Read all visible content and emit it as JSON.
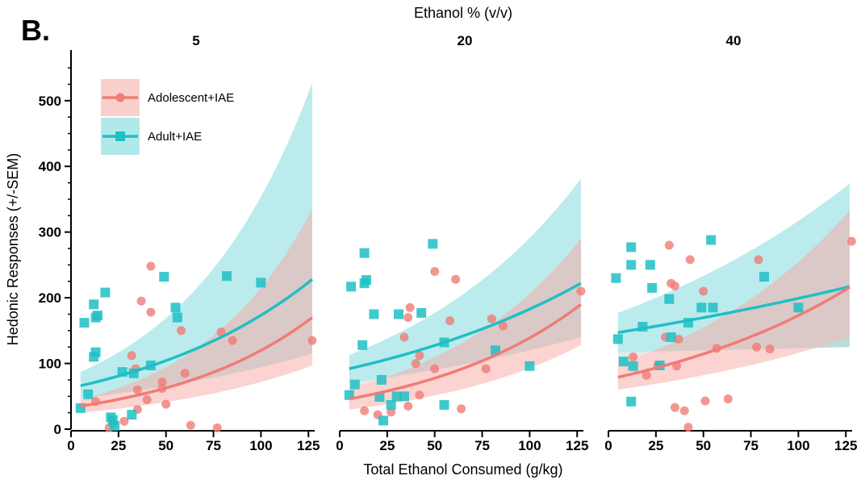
{
  "figure": {
    "panel_letter": "B.",
    "top_title": "Ethanol % (v/v)",
    "xlabel": "Total Ethanol Consumed (g/kg)",
    "ylabel": "Hedonic Responses (+/-SEM)"
  },
  "colors": {
    "adolescent": "#F07C76",
    "adolescent_band": "#F9C4C1",
    "adult": "#1FBFC4",
    "adult_band": "#9EE3E6",
    "overlap_band": "#BFC0BD"
  },
  "legend": {
    "position": "top-left",
    "items": [
      {
        "label": "Adolescent+IAE",
        "series": "adolescent",
        "marker": "circle"
      },
      {
        "label": "Adult+IAE",
        "series": "adult",
        "marker": "square"
      }
    ]
  },
  "chart_data": {
    "type": "scatter",
    "xlim": [
      0,
      130
    ],
    "ylim": [
      0,
      560
    ],
    "x_ticks": [
      0,
      25,
      50,
      75,
      100,
      125
    ],
    "y_ticks": [
      0,
      100,
      200,
      300,
      400,
      500
    ],
    "fit": "exponential trend with confidence band",
    "facets": [
      {
        "label": "5",
        "series": [
          {
            "name": "Adolescent+IAE",
            "key": "adolescent",
            "points": [
              [
                20,
                2
              ],
              [
                22,
                8
              ],
              [
                28,
                12
              ],
              [
                13,
                42
              ],
              [
                32,
                112
              ],
              [
                34,
                92
              ],
              [
                35,
                60
              ],
              [
                35,
                30
              ],
              [
                37,
                195
              ],
              [
                40,
                45
              ],
              [
                42,
                248
              ],
              [
                42,
                178
              ],
              [
                48,
                62
              ],
              [
                48,
                72
              ],
              [
                50,
                38
              ],
              [
                58,
                150
              ],
              [
                60,
                85
              ],
              [
                63,
                6
              ],
              [
                77,
                2
              ],
              [
                79,
                148
              ],
              [
                85,
                135
              ],
              [
                127,
                135
              ]
            ],
            "fit": {
              "x_range": [
                5,
                127
              ],
              "y_start": 35,
              "y_end": 170,
              "lower_start": 25,
              "lower_end": 97,
              "upper_start": 45,
              "upper_end": 335
            }
          },
          {
            "name": "Adult+IAE",
            "key": "adult",
            "points": [
              [
                5,
                32
              ],
              [
                7,
                162
              ],
              [
                9,
                53
              ],
              [
                12,
                190
              ],
              [
                12,
                110
              ],
              [
                13,
                117
              ],
              [
                13,
                170
              ],
              [
                14,
                173
              ],
              [
                18,
                208
              ],
              [
                21,
                18
              ],
              [
                22,
                14
              ],
              [
                23,
                5
              ],
              [
                27,
                87
              ],
              [
                32,
                22
              ],
              [
                33,
                85
              ],
              [
                42,
                97
              ],
              [
                49,
                232
              ],
              [
                55,
                185
              ],
              [
                56,
                170
              ],
              [
                82,
                233
              ],
              [
                100,
                223
              ]
            ],
            "fit": {
              "x_range": [
                5,
                127
              ],
              "y_start": 66,
              "y_end": 228,
              "lower_start": 47,
              "lower_end": 115,
              "upper_start": 87,
              "upper_end": 527
            }
          }
        ]
      },
      {
        "label": "20",
        "series": [
          {
            "name": "Adolescent+IAE",
            "key": "adolescent",
            "points": [
              [
                13,
                28
              ],
              [
                20,
                22
              ],
              [
                27,
                26
              ],
              [
                34,
                140
              ],
              [
                36,
                35
              ],
              [
                36,
                170
              ],
              [
                37,
                185
              ],
              [
                40,
                100
              ],
              [
                42,
                112
              ],
              [
                42,
                52
              ],
              [
                50,
                92
              ],
              [
                50,
                240
              ],
              [
                58,
                165
              ],
              [
                61,
                228
              ],
              [
                64,
                31
              ],
              [
                77,
                92
              ],
              [
                80,
                168
              ],
              [
                86,
                157
              ],
              [
                127,
                210
              ]
            ],
            "fit": {
              "x_range": [
                5,
                127
              ],
              "y_start": 46,
              "y_end": 190,
              "lower_start": 30,
              "lower_end": 128,
              "upper_start": 62,
              "upper_end": 290
            }
          },
          {
            "name": "Adult+IAE",
            "key": "adult",
            "points": [
              [
                5,
                52
              ],
              [
                6,
                217
              ],
              [
                8,
                68
              ],
              [
                12,
                128
              ],
              [
                13,
                268
              ],
              [
                13,
                222
              ],
              [
                14,
                227
              ],
              [
                18,
                175
              ],
              [
                21,
                49
              ],
              [
                22,
                75
              ],
              [
                23,
                13
              ],
              [
                27,
                37
              ],
              [
                30,
                50
              ],
              [
                31,
                175
              ],
              [
                34,
                50
              ],
              [
                43,
                177
              ],
              [
                49,
                282
              ],
              [
                55,
                132
              ],
              [
                55,
                37
              ],
              [
                82,
                120
              ],
              [
                100,
                96
              ]
            ],
            "fit": {
              "x_range": [
                5,
                127
              ],
              "y_start": 92,
              "y_end": 222,
              "lower_start": 70,
              "lower_end": 140,
              "upper_start": 113,
              "upper_end": 381
            }
          }
        ]
      },
      {
        "label": "40",
        "series": [
          {
            "name": "Adolescent+IAE",
            "key": "adolescent",
            "points": [
              [
                13,
                110
              ],
              [
                20,
                82
              ],
              [
                26,
                97
              ],
              [
                30,
                140
              ],
              [
                32,
                280
              ],
              [
                33,
                222
              ],
              [
                35,
                218
              ],
              [
                35,
                33
              ],
              [
                37,
                137
              ],
              [
                36,
                96
              ],
              [
                40,
                28
              ],
              [
                42,
                3
              ],
              [
                43,
                258
              ],
              [
                50,
                210
              ],
              [
                51,
                43
              ],
              [
                57,
                123
              ],
              [
                63,
                46
              ],
              [
                78,
                125
              ],
              [
                79,
                258
              ],
              [
                85,
                122
              ],
              [
                128,
                286
              ]
            ],
            "fit": {
              "x_range": [
                5,
                127
              ],
              "y_start": 79,
              "y_end": 216,
              "lower_start": 60,
              "lower_end": 140,
              "upper_start": 99,
              "upper_end": 333
            }
          },
          {
            "name": "Adult+IAE",
            "key": "adult",
            "points": [
              [
                4,
                230
              ],
              [
                5,
                137
              ],
              [
                8,
                103
              ],
              [
                12,
                42
              ],
              [
                12,
                250
              ],
              [
                12,
                277
              ],
              [
                13,
                96
              ],
              [
                18,
                156
              ],
              [
                22,
                250
              ],
              [
                23,
                215
              ],
              [
                27,
                97
              ],
              [
                32,
                198
              ],
              [
                33,
                140
              ],
              [
                42,
                162
              ],
              [
                49,
                185
              ],
              [
                54,
                288
              ],
              [
                55,
                185
              ],
              [
                82,
                232
              ],
              [
                100,
                185
              ]
            ],
            "fit": {
              "x_range": [
                5,
                127
              ],
              "y_start": 147,
              "y_end": 217,
              "lower_start": 117,
              "lower_end": 125,
              "upper_start": 177,
              "upper_end": 374
            }
          }
        ]
      }
    ]
  }
}
